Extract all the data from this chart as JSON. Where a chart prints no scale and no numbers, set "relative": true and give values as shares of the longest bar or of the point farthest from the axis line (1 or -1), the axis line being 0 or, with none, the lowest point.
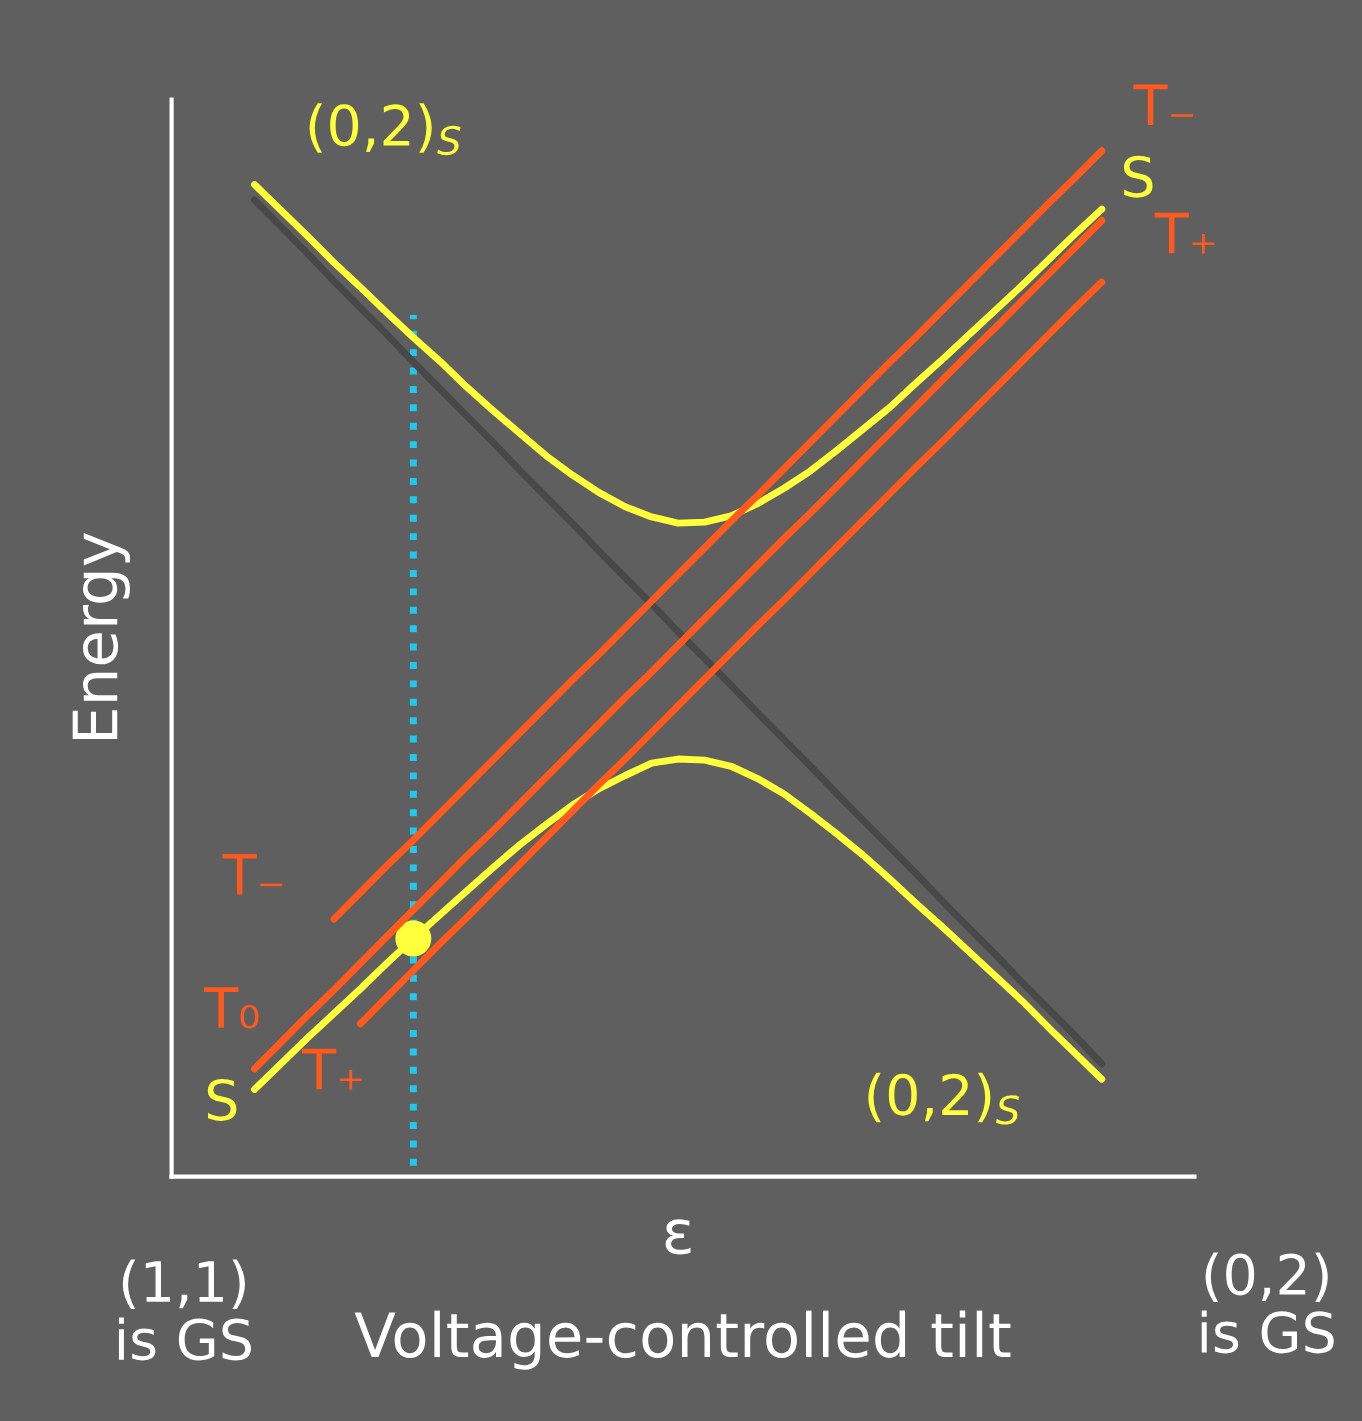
{
  "chart_data": {
    "type": "line",
    "relative": true,
    "ylabel": "Energy",
    "xlabel": "Voltage-controlled tilt",
    "categories": [
      null,
      null,
      null,
      null,
      null,
      null,
      null,
      null,
      null,
      null,
      null,
      null,
      null,
      null,
      null,
      null,
      null,
      null,
      null,
      null,
      null,
      null,
      null,
      null,
      null,
      null,
      null,
      null,
      null,
      null,
      null,
      null,
      null
    ],
    "series": [
      {
        "color": "#484848",
        "values": [
          0.952,
          0.926,
          0.9,
          0.873,
          0.847,
          0.821,
          0.794,
          0.768,
          0.742,
          0.716,
          0.689,
          0.663,
          0.637,
          0.61,
          0.584,
          0.558,
          0.531,
          0.505,
          0.479,
          0.452,
          0.426,
          0.4,
          0.373,
          0.347,
          0.321,
          0.295,
          0.268,
          0.242,
          0.216,
          0.189,
          0.163,
          0.137,
          0.11
        ]
      },
      {
        "name": "(0,2)$_{S}$",
        "color": "#ffff3c",
        "values": [
          0.967,
          0.942,
          0.917,
          0.891,
          0.867,
          0.842,
          0.818,
          0.795,
          0.77,
          0.747,
          0.725,
          0.703,
          0.684,
          0.667,
          0.653,
          0.643,
          0.637,
          0.638,
          0.644,
          0.656,
          0.671,
          0.688,
          0.708,
          0.729,
          0.75,
          0.774,
          0.797,
          0.821,
          0.845,
          0.869,
          0.894,
          0.919,
          0.943
        ]
      },
      {
        "name": "T₋",
        "color": "#ff5a1e",
        "values": [
          null,
          null,
          null,
          0.251,
          0.277,
          0.303,
          0.328,
          0.354,
          0.38,
          0.406,
          0.432,
          0.458,
          0.484,
          0.509,
          0.535,
          0.561,
          0.587,
          0.613,
          0.639,
          0.664,
          0.69,
          0.716,
          0.742,
          0.768,
          0.794,
          0.819,
          0.845,
          0.871,
          0.897,
          0.923,
          0.949,
          0.974,
          1.0
        ]
      },
      {
        "name": "T₀",
        "color": "#ff5a1e",
        "values": [
          0.105,
          0.131,
          0.157,
          0.182,
          0.208,
          0.234,
          0.26,
          0.286,
          0.312,
          0.337,
          0.363,
          0.389,
          0.415,
          0.441,
          0.467,
          0.492,
          0.518,
          0.544,
          0.57,
          0.596,
          0.622,
          0.647,
          0.673,
          0.699,
          0.725,
          0.751,
          0.777,
          0.803,
          0.828,
          0.854,
          0.88,
          0.906,
          0.932
        ]
      },
      {
        "name": "S",
        "color": "#ffff3c",
        "values": [
          0.085,
          0.11,
          0.135,
          0.159,
          0.183,
          0.208,
          0.232,
          0.255,
          0.278,
          0.301,
          0.323,
          0.343,
          0.362,
          0.378,
          0.391,
          0.403,
          0.407,
          0.406,
          0.4,
          0.388,
          0.373,
          0.354,
          0.334,
          0.313,
          0.29,
          0.266,
          0.243,
          0.219,
          0.195,
          0.171,
          0.145,
          0.12,
          0.095
        ]
      },
      {
        "name": "T₊",
        "color": "#ff5a1e",
        "values": [
          null,
          null,
          null,
          null,
          0.149,
          0.175,
          0.201,
          0.227,
          0.252,
          0.278,
          0.304,
          0.33,
          0.356,
          0.382,
          0.407,
          0.433,
          0.459,
          0.485,
          0.511,
          0.537,
          0.562,
          0.588,
          0.614,
          0.64,
          0.666,
          0.692,
          0.717,
          0.743,
          0.769,
          0.795,
          0.821,
          0.847,
          0.872
        ]
      }
    ],
    "annotations": [
      "ε",
      "T₋",
      "S",
      "T₊",
      "(0,2)$_{S}$",
      "(1,1)\nis GS",
      "(0,2)\nis GS"
    ],
    "grid": false
  }
}
